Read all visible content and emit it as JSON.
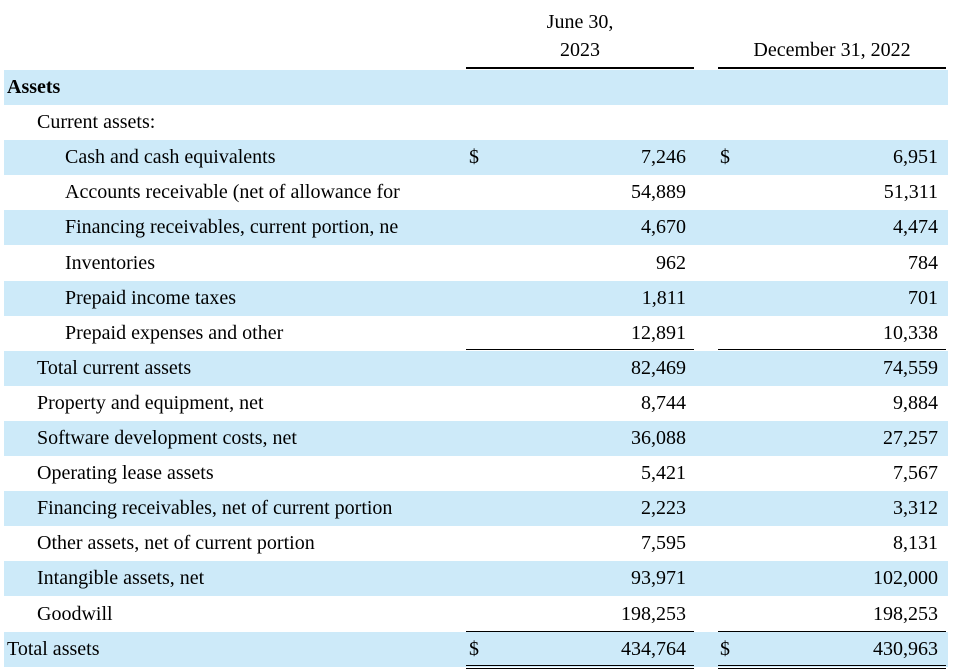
{
  "header": {
    "col1_line1": "June 30,",
    "col1_line2": "2023",
    "col2": "December 31, 2022"
  },
  "currency_symbol": "$",
  "rows": [
    {
      "label": "Assets",
      "indent": 0,
      "bold": true,
      "shaded": true,
      "v1": "",
      "v2": "",
      "dollar": false
    },
    {
      "label": "Current assets:",
      "indent": 1,
      "bold": false,
      "shaded": false,
      "v1": "",
      "v2": "",
      "dollar": false
    },
    {
      "label": "Cash and cash equivalents",
      "indent": 2,
      "bold": false,
      "shaded": true,
      "v1": "7,246",
      "v2": "6,951",
      "dollar": true
    },
    {
      "label": "Accounts receivable (net of allowance for",
      "indent": 2,
      "bold": false,
      "shaded": false,
      "v1": "54,889",
      "v2": "51,311",
      "dollar": false
    },
    {
      "label": "Financing receivables, current portion, ne",
      "indent": 2,
      "bold": false,
      "shaded": true,
      "v1": "4,670",
      "v2": "4,474",
      "dollar": false
    },
    {
      "label": "Inventories",
      "indent": 2,
      "bold": false,
      "shaded": false,
      "v1": "962",
      "v2": "784",
      "dollar": false
    },
    {
      "label": "Prepaid income taxes",
      "indent": 2,
      "bold": false,
      "shaded": true,
      "v1": "1,811",
      "v2": "701",
      "dollar": false
    },
    {
      "label": "Prepaid expenses and other",
      "indent": 2,
      "bold": false,
      "shaded": false,
      "v1": "12,891",
      "v2": "10,338",
      "dollar": false
    },
    {
      "label": "Total current assets",
      "indent": 1,
      "bold": false,
      "shaded": true,
      "v1": "82,469",
      "v2": "74,559",
      "dollar": false
    },
    {
      "label": "Property and equipment, net",
      "indent": 1,
      "bold": false,
      "shaded": false,
      "v1": "8,744",
      "v2": "9,884",
      "dollar": false
    },
    {
      "label": "Software development costs, net",
      "indent": 1,
      "bold": false,
      "shaded": true,
      "v1": "36,088",
      "v2": "27,257",
      "dollar": false
    },
    {
      "label": "Operating lease assets",
      "indent": 1,
      "bold": false,
      "shaded": false,
      "v1": "5,421",
      "v2": "7,567",
      "dollar": false
    },
    {
      "label": "Financing receivables, net of current portion",
      "indent": 1,
      "bold": false,
      "shaded": true,
      "v1": "2,223",
      "v2": "3,312",
      "dollar": false
    },
    {
      "label": "Other assets, net of current portion",
      "indent": 1,
      "bold": false,
      "shaded": false,
      "v1": "7,595",
      "v2": "8,131",
      "dollar": false
    },
    {
      "label": "Intangible assets, net",
      "indent": 1,
      "bold": false,
      "shaded": true,
      "v1": "93,971",
      "v2": "102,000",
      "dollar": false
    },
    {
      "label": "Goodwill",
      "indent": 1,
      "bold": false,
      "shaded": false,
      "v1": "198,253",
      "v2": "198,253",
      "dollar": false
    },
    {
      "label": "Total assets",
      "indent": 0,
      "bold": false,
      "shaded": true,
      "v1": "434,764",
      "v2": "430,963",
      "dollar": true
    }
  ],
  "colors": {
    "row_shade": "#cdeaf9",
    "rule": "#000000"
  }
}
